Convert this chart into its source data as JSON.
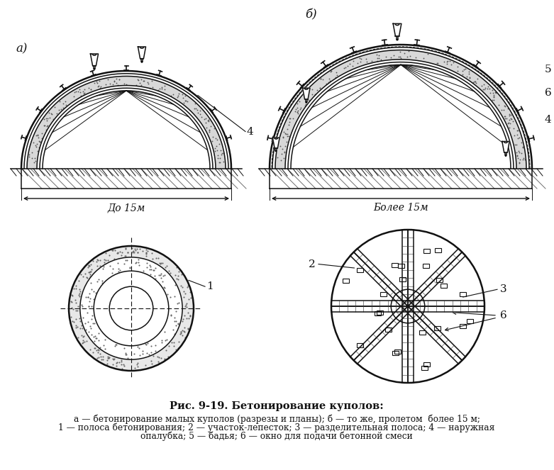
{
  "bg_color": "#ffffff",
  "line_color": "#111111",
  "caption_title": "Рис. 9-19. Бетонирование куполов:",
  "caption_body_1": "а — бетонирование малых куполов (разрезы и планы); б — то же, пролетом  более 15 м;",
  "caption_body_2": "1 — полоса бетонирования; 2 — участок-лепесток; 3 — разделительная полоса; 4 — наружная",
  "caption_body_3": "опалубка; 5 — бадья; 6 — окно для подачи бетонной смеси",
  "label_a": "а)",
  "label_b": "б)"
}
